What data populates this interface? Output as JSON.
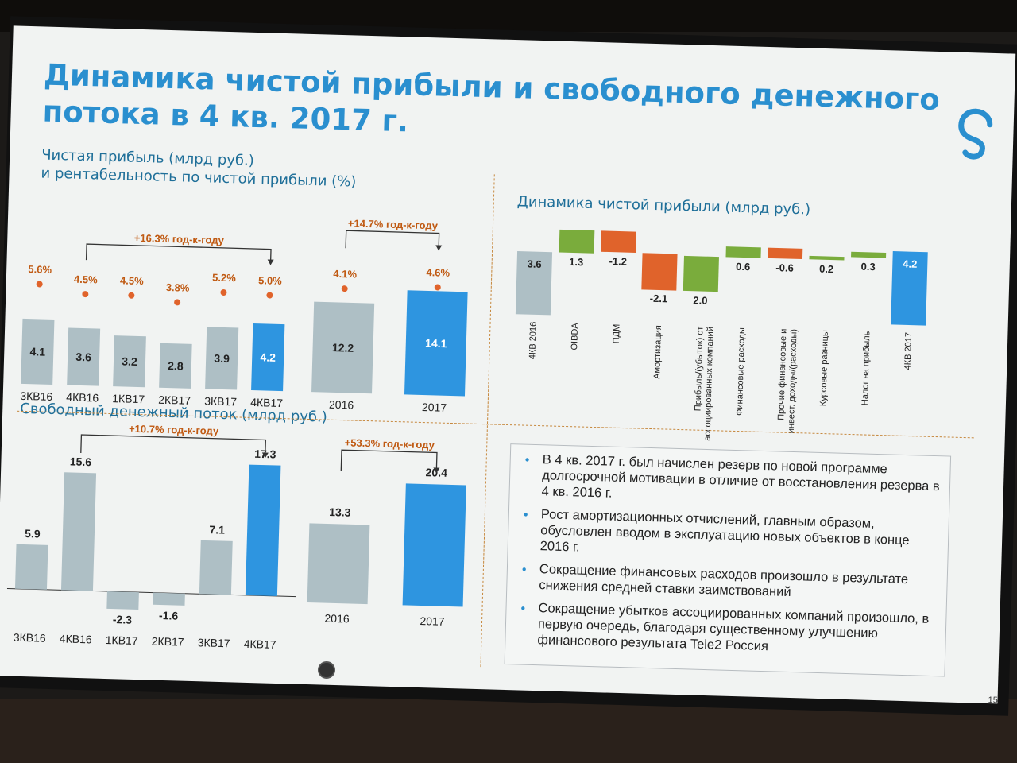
{
  "slide": {
    "title": "Динамика чистой прибыли и свободного денежного потока в 4 кв. 2017 г.",
    "page_number": "15",
    "logo_icon": "rostelecom-logo-icon"
  },
  "colors": {
    "title_blue": "#2a8fcf",
    "bar_gray": "#aebfc5",
    "bar_blue": "#2e95e0",
    "orange": "#e0632b",
    "green": "#7aac3c",
    "dashed_divider": "#c6873c",
    "margin_dot": "#e0632b"
  },
  "panels": {
    "net_profit": {
      "title_line1": "Чистая прибыль (млрд руб.)",
      "title_line2": "и рентабельность по чистой прибыли (%)"
    },
    "waterfall": {
      "title": "Динамика чистой прибыли (млрд руб.)"
    },
    "fcf": {
      "title": "Свободный денежный поток (млрд руб.)"
    }
  },
  "bullets": [
    "В 4 кв. 2017 г. был начислен резерв по новой программе долгосрочной мотивации в отличие от восстановления резерва в 4 кв. 2016 г.",
    "Рост амортизационных отчислений, главным образом, обусловлен вводом в эксплуатацию новых объектов в конце 2016 г.",
    "Сокращение финансовых расходов произошло в результате снижения средней ставки заимствований",
    "Сокращение убытков ассоциированных компаний произошло, в первую очередь, благодаря существенному улучшению финансового результата Tele2 Россия"
  ],
  "chart_data": [
    {
      "id": "net_profit_quarterly",
      "type": "bar",
      "title": "Чистая прибыль (млрд руб.)",
      "categories": [
        "3КВ16",
        "4КВ16",
        "1КВ17",
        "2КВ17",
        "3КВ17",
        "4КВ17"
      ],
      "series": [
        {
          "name": "Чистая прибыль (млрд руб.)",
          "values": [
            4.1,
            3.6,
            3.2,
            2.8,
            3.9,
            4.2
          ]
        },
        {
          "name": "рентабельность по чистой прибыли (%)",
          "values": [
            5.6,
            4.5,
            4.5,
            3.8,
            5.2,
            5.0
          ]
        }
      ],
      "value_labels": [
        "4.1",
        "3.6",
        "3.2",
        "2.8",
        "3.9",
        "4.2"
      ],
      "margin_labels": [
        "5.6%",
        "4.5%",
        "4.5%",
        "3.8%",
        "5.2%",
        "5.0%"
      ],
      "highlight_index": 5,
      "annotation": "+16.3% год-к-году"
    },
    {
      "id": "net_profit_annual",
      "type": "bar",
      "categories": [
        "2016",
        "2017"
      ],
      "series": [
        {
          "name": "Чистая прибыль (млрд руб.)",
          "values": [
            12.2,
            14.1
          ]
        },
        {
          "name": "рентабельность по чистой прибыли (%)",
          "values": [
            4.1,
            4.6
          ]
        }
      ],
      "value_labels": [
        "12.2",
        "14.1"
      ],
      "margin_labels": [
        "4.1%",
        "4.6%"
      ],
      "highlight_index": 1,
      "annotation": "+14.7% год-к-году"
    },
    {
      "id": "net_profit_waterfall",
      "type": "bar",
      "subtype": "waterfall",
      "title": "Динамика чистой прибыли (млрд руб.)",
      "categories": [
        "4КВ 2016",
        "OIBDA",
        "ПДМ",
        "Амортизация",
        "Прибыль/(убыток) от ассоциированных компаний",
        "Финансовые расходы",
        "Прочие финансовые и инвест. доходы/(расходы)",
        "Курсовые разницы",
        "Налог на прибыль",
        "4КВ 2017"
      ],
      "values": [
        3.6,
        1.3,
        -1.2,
        -2.1,
        2.0,
        0.6,
        -0.6,
        0.2,
        0.3,
        4.2
      ],
      "value_labels": [
        "3.6",
        "1.3",
        "-1.2",
        "-2.1",
        "2.0",
        "0.6",
        "-0.6",
        "0.2",
        "0.3",
        "4.2"
      ],
      "kinds": [
        "total",
        "up",
        "down",
        "down",
        "up",
        "up",
        "down",
        "up",
        "up",
        "total"
      ]
    },
    {
      "id": "fcf_quarterly",
      "type": "bar",
      "title": "Свободный денежный поток (млрд руб.)",
      "categories": [
        "3КВ16",
        "4КВ16",
        "1КВ17",
        "2КВ17",
        "3КВ17",
        "4КВ17"
      ],
      "values": [
        5.9,
        15.6,
        -2.3,
        -1.6,
        7.1,
        17.3
      ],
      "value_labels": [
        "5.9",
        "15.6",
        "-2.3",
        "-1.6",
        "7.1",
        "17.3"
      ],
      "highlight_index": 5,
      "annotation": "+10.7% год-к-году"
    },
    {
      "id": "fcf_annual",
      "type": "bar",
      "categories": [
        "2016",
        "2017"
      ],
      "values": [
        13.3,
        20.4
      ],
      "value_labels": [
        "13.3",
        "20.4"
      ],
      "highlight_index": 1,
      "annotation": "+53.3% год-к-году"
    }
  ]
}
